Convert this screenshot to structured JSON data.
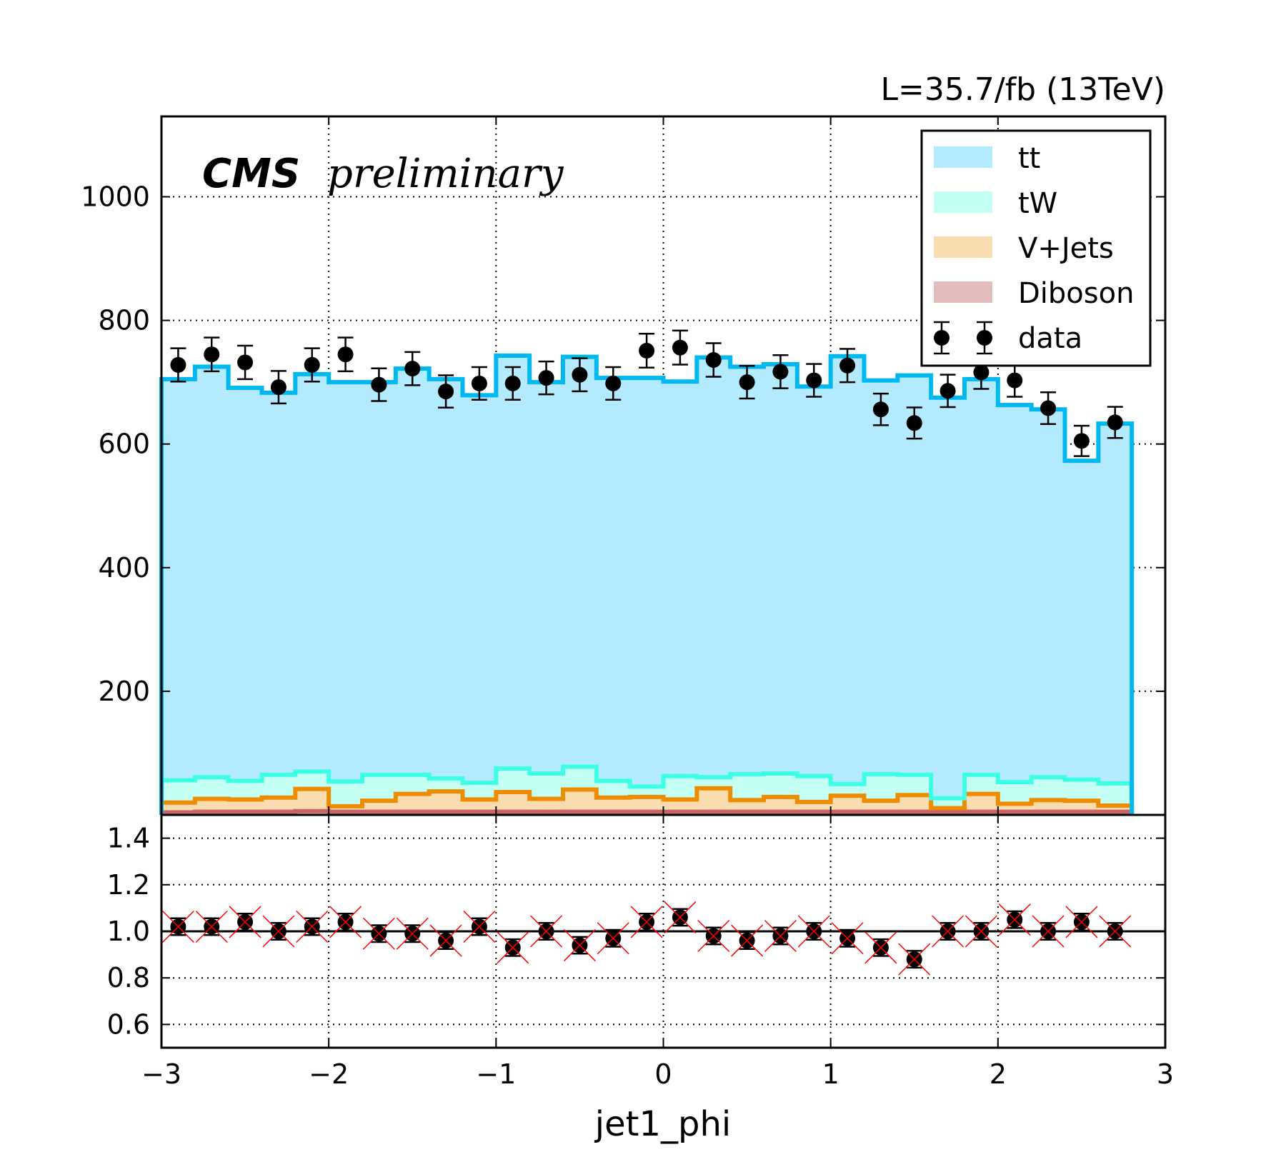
{
  "chart_data": [
    {
      "type": "stacked-histogram",
      "panel": "main",
      "lumi_label": "L=35.7/fb (13TeV)",
      "experiment_label": "CMS",
      "status_label": "preliminary",
      "xlim": [
        -3,
        3
      ],
      "ylim": [
        0,
        1130
      ],
      "yticks": [
        200,
        400,
        600,
        800,
        1000
      ],
      "grid": true,
      "legend_position": "top-right",
      "bin_edges": [
        -3.0,
        -2.8,
        -2.6,
        -2.4,
        -2.2,
        -2.0,
        -1.8,
        -1.6,
        -1.4,
        -1.2,
        -1.0,
        -0.8,
        -0.6,
        -0.4,
        -0.2,
        0.0,
        0.2,
        0.4,
        0.6,
        0.8,
        1.0,
        1.2,
        1.4,
        1.6,
        1.8,
        2.0,
        2.2,
        2.4,
        2.6,
        2.8
      ],
      "series": [
        {
          "name": "Diboson",
          "color": "#e3bcbc",
          "edge": "#c86464",
          "values": [
            4,
            5,
            5,
            5,
            6,
            5,
            5,
            5,
            5,
            5,
            5,
            5,
            5,
            5,
            5,
            5,
            5,
            5,
            5,
            5,
            5,
            5,
            5,
            5,
            5,
            5,
            5,
            5,
            5
          ]
        },
        {
          "name": "V+Jets",
          "color": "#f9dcb0",
          "edge": "#ee8c00",
          "values": [
            16,
            21,
            20,
            23,
            36,
            9,
            18,
            29,
            33,
            20,
            32,
            21,
            36,
            23,
            24,
            20,
            38,
            19,
            24,
            16,
            26,
            18,
            27,
            6,
            29,
            13,
            19,
            18,
            10
          ]
        },
        {
          "name": "tW",
          "color": "#c4fff4",
          "edge": "#3cffe6",
          "values": [
            36,
            35,
            30,
            37,
            28,
            40,
            42,
            31,
            21,
            27,
            38,
            41,
            37,
            27,
            17,
            38,
            18,
            42,
            38,
            42,
            19,
            43,
            33,
            16,
            31,
            35,
            37,
            34,
            36
          ]
        },
        {
          "name": "tt",
          "color": "#b3eafd",
          "edge": "#00b8f0",
          "values": [
            649,
            664,
            636,
            618,
            643,
            646,
            635,
            657,
            646,
            627,
            668,
            633,
            663,
            652,
            661,
            638,
            679,
            659,
            662,
            630,
            692,
            637,
            646,
            648,
            640,
            610,
            595,
            516,
            582
          ]
        }
      ],
      "data": {
        "name": "data",
        "x": [
          -2.9,
          -2.7,
          -2.5,
          -2.3,
          -2.1,
          -1.9,
          -1.7,
          -1.5,
          -1.3,
          -1.1,
          -0.9,
          -0.7,
          -0.5,
          -0.3,
          -0.1,
          0.1,
          0.3,
          0.5,
          0.7,
          0.9,
          1.1,
          1.3,
          1.5,
          1.7,
          1.9,
          2.1,
          2.3,
          2.5,
          2.7
        ],
        "values": [
          728,
          745,
          732,
          692,
          728,
          745,
          696,
          722,
          685,
          698,
          698,
          707,
          712,
          698,
          751,
          756,
          736,
          700,
          717,
          703,
          727,
          656,
          634,
          686,
          716,
          703,
          658,
          605,
          635
        ]
      }
    },
    {
      "type": "ratio",
      "panel": "ratio",
      "xlabel": "jet1_phi",
      "xlim": [
        -3,
        3
      ],
      "ylim": [
        0.5,
        1.5
      ],
      "yticks": [
        0.6,
        0.8,
        1.0,
        1.2,
        1.4
      ],
      "xticks": [
        -3,
        -2,
        -1,
        0,
        1,
        2,
        3
      ],
      "reference_line": 1.0,
      "grid": true,
      "x": [
        -2.9,
        -2.7,
        -2.5,
        -2.3,
        -2.1,
        -1.9,
        -1.7,
        -1.5,
        -1.3,
        -1.1,
        -0.9,
        -0.7,
        -0.5,
        -0.3,
        -0.1,
        0.1,
        0.3,
        0.5,
        0.7,
        0.9,
        1.1,
        1.3,
        1.5,
        1.7,
        1.9,
        2.1,
        2.3,
        2.5,
        2.7
      ],
      "values": [
        1.02,
        1.02,
        1.04,
        1.0,
        1.02,
        1.04,
        0.99,
        0.99,
        0.96,
        1.02,
        0.93,
        1.0,
        0.94,
        0.97,
        1.04,
        1.06,
        0.98,
        0.96,
        0.98,
        1.0,
        0.97,
        0.93,
        0.88,
        1.0,
        1.0,
        1.05,
        1.0,
        1.04,
        1.0
      ]
    }
  ]
}
